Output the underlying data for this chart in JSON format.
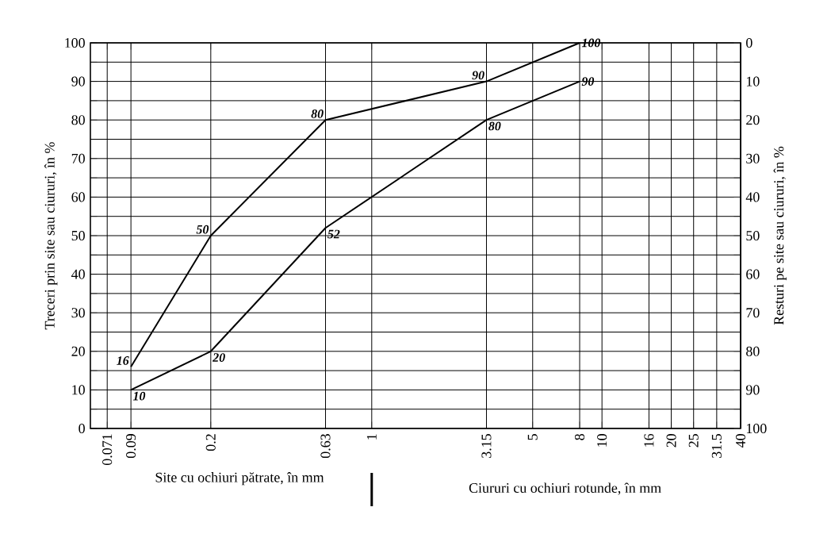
{
  "chart_data": {
    "type": "line",
    "xlabel": "Site cu ochiuri pătrate, în mm",
    "ylabel": "Treceri prin site sau ciururi, în %",
    "y2label": "Resturi pe site sau ciururi, în %",
    "annotations": [
      "Ciururi cu ochiuri rotunde, în mm"
    ],
    "log": "x",
    "xlim": [
      0.06,
      40
    ],
    "xticks": [
      0.071,
      0.09,
      0.2,
      0.63,
      1,
      3.15,
      5,
      8,
      10,
      16,
      20,
      25,
      31.5,
      40
    ],
    "ylim": [
      0,
      100
    ],
    "yticks": [
      0,
      {
        "value": 5,
        "label": null
      },
      10,
      {
        "value": 15,
        "label": null
      },
      20,
      {
        "value": 25,
        "label": null
      },
      30,
      {
        "value": 35,
        "label": null
      },
      40,
      {
        "value": 45,
        "label": null
      },
      50,
      {
        "value": 55,
        "label": null
      },
      60,
      {
        "value": 65,
        "label": null
      },
      70,
      {
        "value": 75,
        "label": null
      },
      80,
      {
        "value": 85,
        "label": null
      },
      90,
      {
        "value": 95,
        "label": null
      },
      100
    ],
    "y2lim": [
      100,
      0
    ],
    "y2ticks": [
      0,
      10,
      20,
      30,
      40,
      50,
      60,
      70,
      80,
      90,
      100
    ],
    "grid": true,
    "data_labels": true,
    "series": [
      {
        "color": "#000000",
        "x": [
          0.09,
          0.2,
          0.63,
          3.15,
          8
        ],
        "values": [
          16,
          50,
          80,
          90,
          100
        ]
      },
      {
        "color": "#000000",
        "x": [
          0.09,
          0.2,
          0.63,
          3.15,
          8
        ],
        "values": [
          10,
          20,
          52,
          80,
          90
        ]
      }
    ]
  }
}
